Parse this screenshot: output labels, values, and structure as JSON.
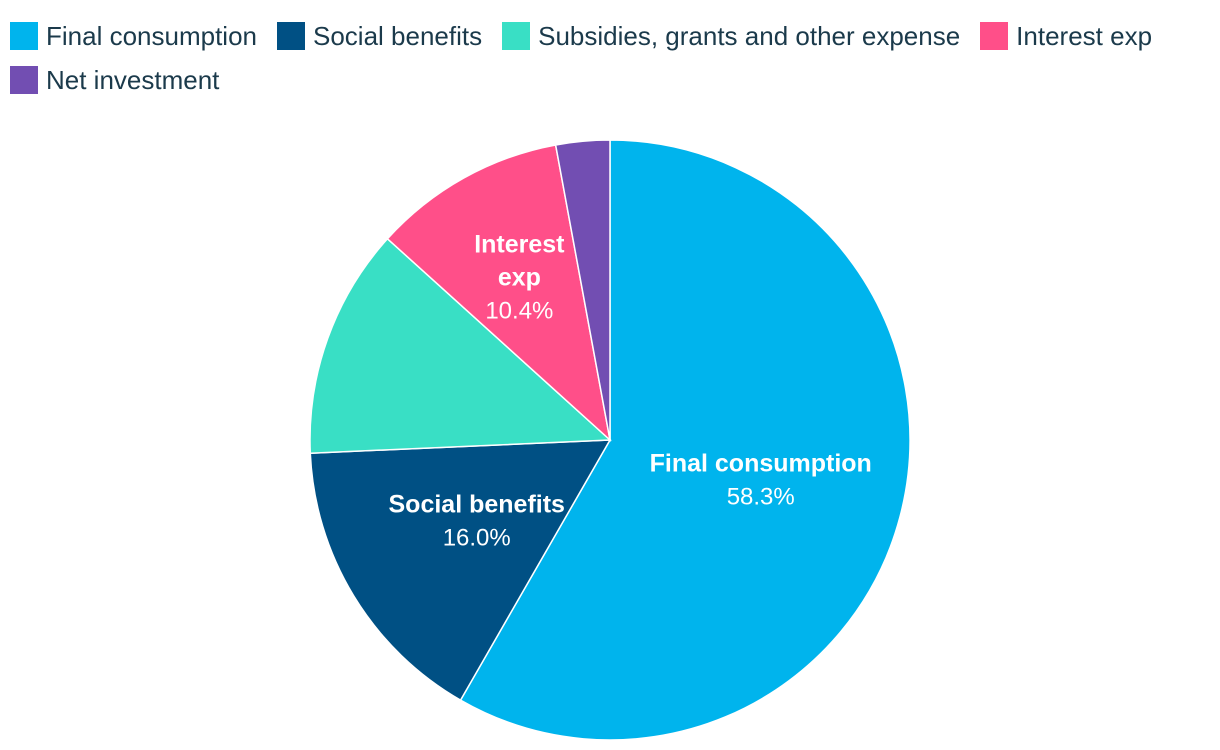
{
  "chart_data": {
    "type": "pie",
    "title": "",
    "slices": [
      {
        "name": "Final consumption",
        "value": 58.3,
        "value_label": "58.3%",
        "color": "#00b4ed",
        "label_lines": [
          "Final consumption"
        ]
      },
      {
        "name": "Social benefits",
        "value": 16.0,
        "value_label": "16.0%",
        "color": "#005084",
        "label_lines": [
          "Social benefits"
        ]
      },
      {
        "name": "Subsidies, grants and other expense",
        "value": 12.4,
        "value_label": "",
        "color": "#39dfc5",
        "label_lines": []
      },
      {
        "name": "Interest exp",
        "value": 10.4,
        "value_label": "10.4%",
        "color": "#ff4f89",
        "label_lines": [
          "Interest",
          "exp"
        ]
      },
      {
        "name": "Net investment",
        "value": 2.9,
        "value_label": "",
        "color": "#724eb2",
        "label_lines": []
      }
    ],
    "legend_position": "top-left",
    "start_angle": "12 o'clock",
    "direction": "clockwise"
  }
}
